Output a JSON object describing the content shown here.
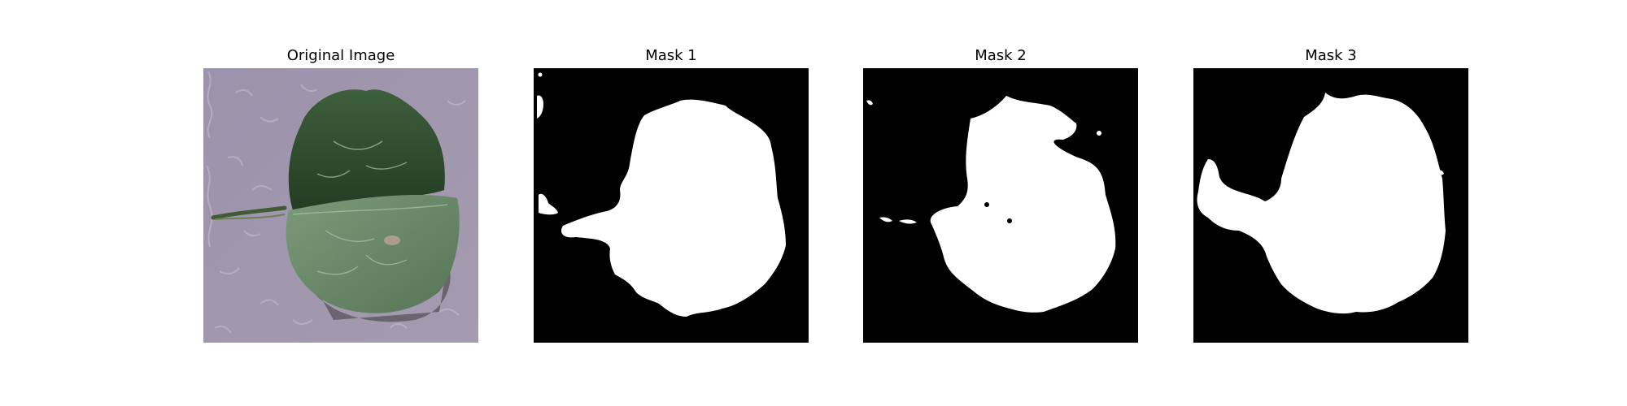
{
  "panels": [
    {
      "title": "Original Image",
      "kind": "photo",
      "subject": "leaf"
    },
    {
      "title": "Mask 1",
      "kind": "mask"
    },
    {
      "title": "Mask 2",
      "kind": "mask"
    },
    {
      "title": "Mask 3",
      "kind": "mask"
    }
  ],
  "colors": {
    "background": "#ffffff",
    "mask_background": "#000000",
    "mask_foreground": "#ffffff",
    "photo_surface": "#9a90a8",
    "leaf_dark": "#2e4a2c",
    "leaf_light": "#6f8f6f"
  }
}
